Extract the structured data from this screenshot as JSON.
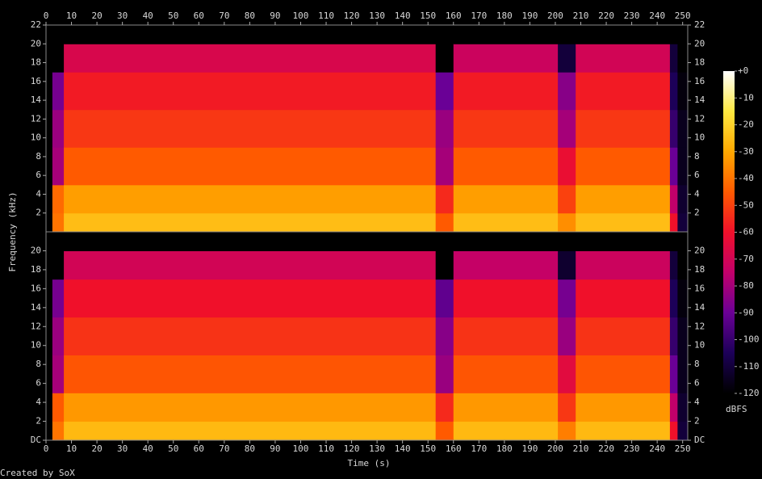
{
  "chart_data": {
    "type": "spectrogram",
    "xlabel": "Time (s)",
    "ylabel": "Frequency (kHz)",
    "footer": "Created by SoX",
    "xlim": [
      0,
      252
    ],
    "xticks": [
      0,
      10,
      20,
      30,
      40,
      50,
      60,
      70,
      80,
      90,
      100,
      110,
      120,
      130,
      140,
      150,
      160,
      170,
      180,
      190,
      200,
      210,
      220,
      230,
      240,
      250
    ],
    "ylim": [
      0,
      22
    ],
    "time_edges": [
      0,
      2.5,
      7,
      153,
      160,
      201,
      208,
      245,
      248,
      252
    ],
    "band_edges": [
      0,
      2,
      5,
      9,
      13,
      17,
      20,
      22
    ],
    "channels": [
      {
        "yticks": [
          2,
          4,
          6,
          8,
          10,
          12,
          14,
          16,
          18,
          20,
          22
        ],
        "values": [
          [
            -120,
            -120,
            -120,
            -120,
            -120,
            -120,
            -120
          ],
          [
            -40,
            -42,
            -80,
            -82,
            -88,
            -120,
            -120
          ],
          [
            -25,
            -32,
            -45,
            -52,
            -58,
            -68,
            -120
          ],
          [
            -45,
            -55,
            -80,
            -82,
            -90,
            -120,
            -120
          ],
          [
            -25,
            -32,
            -45,
            -52,
            -58,
            -72,
            -120
          ],
          [
            -35,
            -50,
            -62,
            -80,
            -85,
            -110,
            -120
          ],
          [
            -25,
            -32,
            -45,
            -52,
            -58,
            -70,
            -120
          ],
          [
            -60,
            -75,
            -90,
            -100,
            -105,
            -110,
            -120
          ],
          [
            -110,
            -112,
            -115,
            -115,
            -118,
            -120,
            -120
          ]
        ]
      },
      {
        "yticks": [
          {
            "value": 0,
            "label": "DC"
          },
          2,
          4,
          6,
          8,
          10,
          12,
          14,
          16,
          18,
          20
        ],
        "values": [
          [
            -120,
            -120,
            -120,
            -120,
            -120,
            -120,
            -120
          ],
          [
            -40,
            -45,
            -80,
            -82,
            -88,
            -120,
            -120
          ],
          [
            -26,
            -33,
            -46,
            -53,
            -60,
            -70,
            -120
          ],
          [
            -45,
            -55,
            -82,
            -85,
            -92,
            -120,
            -120
          ],
          [
            -26,
            -33,
            -46,
            -53,
            -60,
            -74,
            -120
          ],
          [
            -38,
            -52,
            -65,
            -82,
            -88,
            -112,
            -120
          ],
          [
            -26,
            -33,
            -46,
            -53,
            -60,
            -72,
            -120
          ],
          [
            -60,
            -75,
            -90,
            -100,
            -105,
            -110,
            -120
          ],
          [
            -110,
            -112,
            -115,
            -115,
            -118,
            -120,
            -120
          ]
        ]
      }
    ],
    "colorbar": {
      "label": "dBFS",
      "lim": [
        -120,
        0
      ],
      "ticks": [
        {
          "value": 0,
          "label": "+0"
        },
        -10,
        -20,
        -30,
        -40,
        -50,
        -60,
        -70,
        -80,
        -90,
        -100,
        -110,
        -120
      ]
    },
    "colormap": [
      "#000000",
      "#1c0058",
      "#6a0096",
      "#c2006a",
      "#f0102a",
      "#ff5a00",
      "#ffa800",
      "#ffe840",
      "#ffffff"
    ]
  }
}
